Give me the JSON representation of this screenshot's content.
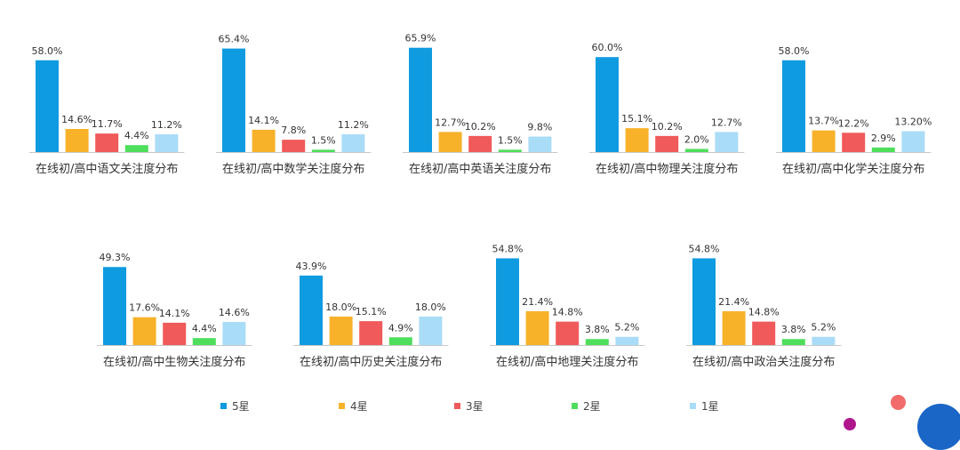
{
  "legend": [
    {
      "name": "5星",
      "color": "#0e9be0"
    },
    {
      "name": "4星",
      "color": "#f7b22a"
    },
    {
      "name": "3星",
      "color": "#f05a5a"
    },
    {
      "name": "2星",
      "color": "#4ede5c"
    },
    {
      "name": "1星",
      "color": "#a9dcf7"
    }
  ],
  "chart_data": [
    {
      "type": "bar",
      "title": "在线初/高中语文关注度分布",
      "categories": [
        "5星",
        "4星",
        "3星",
        "2星",
        "1星"
      ],
      "values": [
        58.0,
        14.6,
        11.7,
        4.4,
        11.2
      ],
      "labels": [
        "58.0%",
        "14.6%",
        "11.7%",
        "4.4%",
        "11.2%"
      ]
    },
    {
      "type": "bar",
      "title": "在线初/高中数学关注度分布",
      "categories": [
        "5星",
        "4星",
        "3星",
        "2星",
        "1星"
      ],
      "values": [
        65.4,
        14.1,
        7.8,
        1.5,
        11.2
      ],
      "labels": [
        "65.4%",
        "14.1%",
        "7.8%",
        "1.5%",
        "11.2%"
      ]
    },
    {
      "type": "bar",
      "title": "在线初/高中英语关注度分布",
      "categories": [
        "5星",
        "4星",
        "3星",
        "2星",
        "1星"
      ],
      "values": [
        65.9,
        12.7,
        10.2,
        1.5,
        9.8
      ],
      "labels": [
        "65.9%",
        "12.7%",
        "10.2%",
        "1.5%",
        "9.8%"
      ]
    },
    {
      "type": "bar",
      "title": "在线初/高中物理关注度分布",
      "categories": [
        "5星",
        "4星",
        "3星",
        "2星",
        "1星"
      ],
      "values": [
        60.0,
        15.1,
        10.2,
        2.0,
        12.7
      ],
      "labels": [
        "60.0%",
        "15.1%",
        "10.2%",
        "2.0%",
        "12.7%"
      ]
    },
    {
      "type": "bar",
      "title": "在线初/高中化学关注度分布",
      "categories": [
        "5星",
        "4星",
        "3星",
        "2星",
        "1星"
      ],
      "values": [
        58.0,
        13.7,
        12.2,
        2.9,
        13.2
      ],
      "labels": [
        "58.0%",
        "13.7%",
        "12.2%",
        "2.9%",
        "13.20%"
      ]
    },
    {
      "type": "bar",
      "title": "在线初/高中生物关注度分布",
      "categories": [
        "5星",
        "4星",
        "3星",
        "2星",
        "1星"
      ],
      "values": [
        49.3,
        17.6,
        14.1,
        4.4,
        14.6
      ],
      "labels": [
        "49.3%",
        "17.6%",
        "14.1%",
        "4.4%",
        "14.6%"
      ]
    },
    {
      "type": "bar",
      "title": "在线初/高中历史关注度分布",
      "categories": [
        "5星",
        "4星",
        "3星",
        "2星",
        "1星"
      ],
      "values": [
        43.9,
        18.0,
        15.1,
        4.9,
        18.0
      ],
      "labels": [
        "43.9%",
        "18.0%",
        "15.1%",
        "4.9%",
        "18.0%"
      ]
    },
    {
      "type": "bar",
      "title": "在线初/高中地理关注度分布",
      "categories": [
        "5星",
        "4星",
        "3星",
        "2星",
        "1星"
      ],
      "values": [
        54.8,
        21.4,
        14.8,
        3.8,
        5.2
      ],
      "labels": [
        "54.8%",
        "21.4%",
        "14.8%",
        "3.8%",
        "5.2%"
      ]
    },
    {
      "type": "bar",
      "title": "在线初/高中政治关注度分布",
      "categories": [
        "5星",
        "4星",
        "3星",
        "2星",
        "1星"
      ],
      "values": [
        54.8,
        21.4,
        14.8,
        3.8,
        5.2
      ],
      "labels": [
        "54.8%",
        "21.4%",
        "14.8%",
        "3.8%",
        "5.2%"
      ]
    }
  ]
}
